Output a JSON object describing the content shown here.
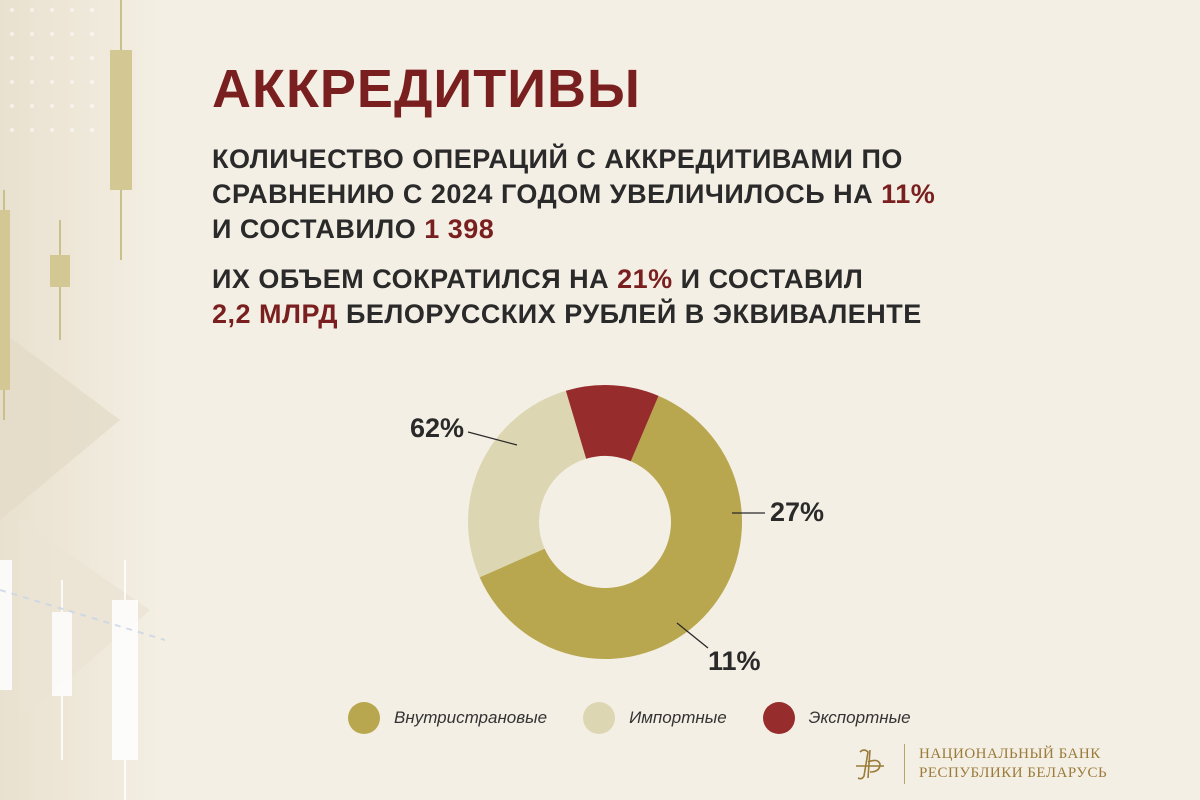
{
  "title": "АККРЕДИТИВЫ",
  "para1": {
    "line1": "КОЛИЧЕСТВО ОПЕРАЦИЙ С АККРЕДИТИВАМИ ПО",
    "line2_pre": "СРАВНЕНИЮ С 2024 ГОДОМ УВЕЛИЧИЛОСЬ НА ",
    "line2_hl": "11%",
    "line3_pre": "И СОСТАВИЛО ",
    "line3_hl": "1 398"
  },
  "para2": {
    "line1_pre": "ИХ ОБЪЕМ СОКРАТИЛСЯ НА ",
    "line1_hl": "21%",
    "line1_post": " И СОСТАВИЛ",
    "line2_hl": "2,2 МЛРД",
    "line2_post": " БЕЛОРУССКИХ РУБЛЕЙ В ЭКВИВАЛЕНТЕ"
  },
  "chart_data": {
    "type": "pie",
    "donut": true,
    "categories": [
      "Внутристрановые",
      "Импортные",
      "Экспортные"
    ],
    "values": [
      62,
      27,
      11
    ],
    "labels": [
      "62%",
      "27%",
      "11%"
    ],
    "colors": [
      "#b8a74e",
      "#ddd6b3",
      "#962c2c"
    ],
    "legend": "bottom"
  },
  "brand": {
    "line1": "НАЦИОНАЛЬНЫЙ БАНК",
    "line2": "РЕСПУБЛИКИ БЕЛАРУСЬ",
    "color": "#9a7b3a"
  },
  "colors": {
    "accent": "#7a1f1f",
    "background": "#f4efe4",
    "text": "#2a2a2a"
  }
}
